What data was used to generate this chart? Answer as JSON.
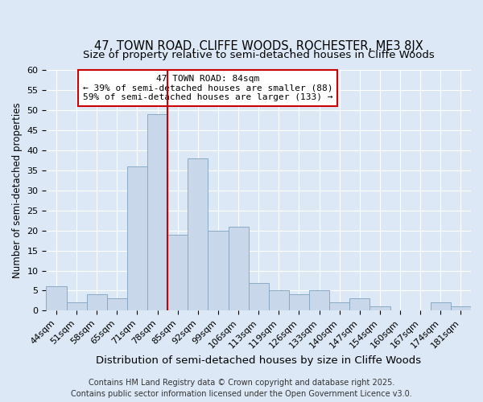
{
  "title": "47, TOWN ROAD, CLIFFE WOODS, ROCHESTER, ME3 8JX",
  "subtitle": "Size of property relative to semi-detached houses in Cliffe Woods",
  "xlabel": "Distribution of semi-detached houses by size in Cliffe Woods",
  "ylabel": "Number of semi-detached properties",
  "categories": [
    "44sqm",
    "51sqm",
    "58sqm",
    "65sqm",
    "71sqm",
    "78sqm",
    "85sqm",
    "92sqm",
    "99sqm",
    "106sqm",
    "113sqm",
    "119sqm",
    "126sqm",
    "133sqm",
    "140sqm",
    "147sqm",
    "154sqm",
    "160sqm",
    "167sqm",
    "174sqm",
    "181sqm"
  ],
  "values": [
    6,
    2,
    4,
    3,
    36,
    49,
    19,
    38,
    20,
    21,
    7,
    5,
    4,
    5,
    2,
    3,
    1,
    0,
    0,
    2,
    1
  ],
  "bar_color": "#c8d8ea",
  "bar_edge_color": "#8aaac4",
  "vline_x_index": 5.5,
  "vline_color": "#cc0000",
  "ylim": [
    0,
    60
  ],
  "yticks": [
    0,
    5,
    10,
    15,
    20,
    25,
    30,
    35,
    40,
    45,
    50,
    55,
    60
  ],
  "annotation_title": "47 TOWN ROAD: 84sqm",
  "annotation_line1": "← 39% of semi-detached houses are smaller (88)",
  "annotation_line2": "59% of semi-detached houses are larger (133) →",
  "annotation_box_color": "#ffffff",
  "annotation_box_edge": "#cc0000",
  "footnote1": "Contains HM Land Registry data © Crown copyright and database right 2025.",
  "footnote2": "Contains public sector information licensed under the Open Government Licence v3.0.",
  "background_color": "#dce8f5",
  "grid_color": "#ffffff",
  "title_fontsize": 10.5,
  "subtitle_fontsize": 9.5,
  "xlabel_fontsize": 9.5,
  "ylabel_fontsize": 8.5,
  "tick_fontsize": 8,
  "annotation_fontsize": 8,
  "footnote_fontsize": 7
}
